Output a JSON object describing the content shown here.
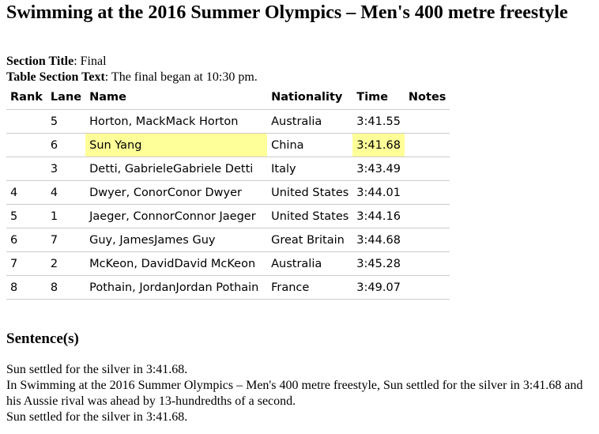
{
  "title": "Swimming at the 2016 Summer Olympics – Men's 400 metre freestyle",
  "section_title_label": "Section Title",
  "section_title_value": ": Final",
  "table_section_label": "Table Section Text",
  "table_section_value": ": The final began at 10:30 pm.",
  "table": {
    "headers": [
      "Rank",
      "Lane",
      "Name",
      "Nationality",
      "Time",
      "Notes"
    ],
    "rows": [
      {
        "rank": "",
        "lane": "5",
        "name": "Horton, MackMack Horton",
        "nationality": "Australia",
        "time": "3:41.55",
        "notes": ""
      },
      {
        "rank": "",
        "lane": "6",
        "name": "Sun Yang",
        "nationality": "China",
        "time": "3:41.68",
        "notes": ""
      },
      {
        "rank": "",
        "lane": "3",
        "name": "Detti, GabrieleGabriele Detti",
        "nationality": "Italy",
        "time": "3:43.49",
        "notes": ""
      },
      {
        "rank": "4",
        "lane": "4",
        "name": "Dwyer, ConorConor Dwyer",
        "nationality": "United States",
        "time": "3:44.01",
        "notes": ""
      },
      {
        "rank": "5",
        "lane": "1",
        "name": "Jaeger, ConnorConnor Jaeger",
        "nationality": "United States",
        "time": "3:44.16",
        "notes": ""
      },
      {
        "rank": "6",
        "lane": "7",
        "name": "Guy, JamesJames Guy",
        "nationality": "Great Britain",
        "time": "3:44.68",
        "notes": ""
      },
      {
        "rank": "7",
        "lane": "2",
        "name": "McKeon, DavidDavid McKeon",
        "nationality": "Australia",
        "time": "3:45.28",
        "notes": ""
      },
      {
        "rank": "8",
        "lane": "8",
        "name": "Pothain, JordanJordan Pothain",
        "nationality": "France",
        "time": "3:49.07",
        "notes": ""
      }
    ]
  },
  "highlight_color": "#ffff99",
  "sentences_heading": "Sentence(s)",
  "sentences": [
    "Sun settled for the silver in 3:41.68.",
    "In Swimming at the 2016 Summer Olympics – Men's 400 metre freestyle, Sun settled for the silver in 3:41.68 and his Aussie rival was ahead by 13-hundredths of a second.",
    "Sun settled for the silver in 3:41.68."
  ]
}
